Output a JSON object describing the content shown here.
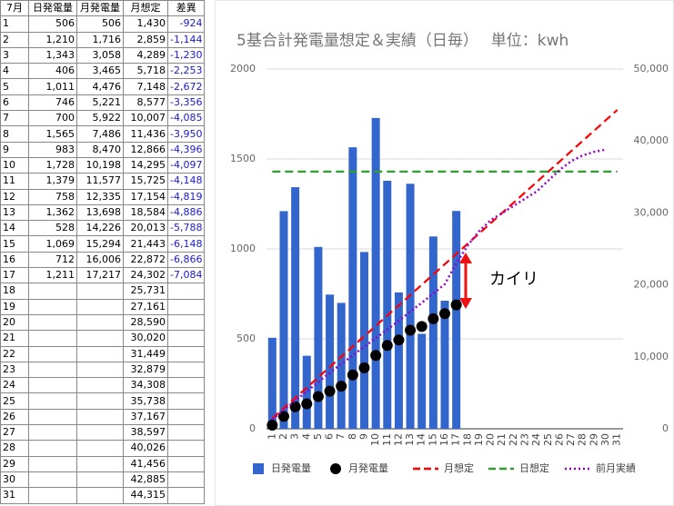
{
  "table": {
    "columns": [
      "7月",
      "日発電量",
      "月発電量",
      "月想定",
      "差異"
    ],
    "rows": [
      {
        "day": "1",
        "daily": "506",
        "monthly": "506",
        "plan": "1,430",
        "diff": "-924"
      },
      {
        "day": "2",
        "daily": "1,210",
        "monthly": "1,716",
        "plan": "2,859",
        "diff": "-1,144"
      },
      {
        "day": "3",
        "daily": "1,343",
        "monthly": "3,058",
        "plan": "4,289",
        "diff": "-1,230"
      },
      {
        "day": "4",
        "daily": "406",
        "monthly": "3,465",
        "plan": "5,718",
        "diff": "-2,253"
      },
      {
        "day": "5",
        "daily": "1,011",
        "monthly": "4,476",
        "plan": "7,148",
        "diff": "-2,672"
      },
      {
        "day": "6",
        "daily": "746",
        "monthly": "5,221",
        "plan": "8,577",
        "diff": "-3,356"
      },
      {
        "day": "7",
        "daily": "700",
        "monthly": "5,922",
        "plan": "10,007",
        "diff": "-4,085"
      },
      {
        "day": "8",
        "daily": "1,565",
        "monthly": "7,486",
        "plan": "11,436",
        "diff": "-3,950"
      },
      {
        "day": "9",
        "daily": "983",
        "monthly": "8,470",
        "plan": "12,866",
        "diff": "-4,396"
      },
      {
        "day": "10",
        "daily": "1,728",
        "monthly": "10,198",
        "plan": "14,295",
        "diff": "-4,097"
      },
      {
        "day": "11",
        "daily": "1,379",
        "monthly": "11,577",
        "plan": "15,725",
        "diff": "-4,148"
      },
      {
        "day": "12",
        "daily": "758",
        "monthly": "12,335",
        "plan": "17,154",
        "diff": "-4,819"
      },
      {
        "day": "13",
        "daily": "1,362",
        "monthly": "13,698",
        "plan": "18,584",
        "diff": "-4,886"
      },
      {
        "day": "14",
        "daily": "528",
        "monthly": "14,226",
        "plan": "20,013",
        "diff": "-5,788"
      },
      {
        "day": "15",
        "daily": "1,069",
        "monthly": "15,294",
        "plan": "21,443",
        "diff": "-6,148"
      },
      {
        "day": "16",
        "daily": "712",
        "monthly": "16,006",
        "plan": "22,872",
        "diff": "-6,866"
      },
      {
        "day": "17",
        "daily": "1,211",
        "monthly": "17,217",
        "plan": "24,302",
        "diff": "-7,084"
      },
      {
        "day": "18",
        "plan": "25,731"
      },
      {
        "day": "19",
        "plan": "27,161"
      },
      {
        "day": "20",
        "plan": "28,590"
      },
      {
        "day": "21",
        "plan": "30,020"
      },
      {
        "day": "22",
        "plan": "31,449"
      },
      {
        "day": "23",
        "plan": "32,879"
      },
      {
        "day": "24",
        "plan": "34,308"
      },
      {
        "day": "25",
        "plan": "35,738"
      },
      {
        "day": "26",
        "plan": "37,167"
      },
      {
        "day": "27",
        "plan": "38,597"
      },
      {
        "day": "28",
        "plan": "40,026"
      },
      {
        "day": "29",
        "plan": "41,456"
      },
      {
        "day": "30",
        "plan": "42,885"
      },
      {
        "day": "31",
        "plan": "44,315"
      }
    ]
  },
  "chart_data": {
    "type": "combo",
    "title": "5基合計発電量想定＆実績（日毎）　 単位：kwh",
    "annotation": "カイリ",
    "categories": [
      "1",
      "2",
      "3",
      "4",
      "5",
      "6",
      "7",
      "8",
      "9",
      "10",
      "11",
      "12",
      "13",
      "14",
      "15",
      "16",
      "17",
      "18",
      "19",
      "20",
      "21",
      "22",
      "23",
      "24",
      "25",
      "26",
      "27",
      "28",
      "29",
      "30",
      "31"
    ],
    "ylim": [
      0,
      2000
    ],
    "yticks": [
      0,
      500,
      1000,
      1500,
      2000
    ],
    "y2lim": [
      0,
      50000
    ],
    "y2ticks": [
      0,
      {
        "value": 10000,
        "label": "10,000"
      },
      {
        "value": 20000,
        "label": "20,000"
      },
      {
        "value": 30000,
        "label": "30,000"
      },
      {
        "value": 40000,
        "label": "40,000"
      },
      {
        "value": 50000,
        "label": "50,000"
      }
    ],
    "grid": true,
    "legend": "bottom",
    "series": [
      {
        "name": "日発電量",
        "color": "#3366cc",
        "mark": "bar",
        "values": [
          506,
          1210,
          1343,
          406,
          1011,
          746,
          700,
          1565,
          983,
          1728,
          1379,
          758,
          1362,
          528,
          1069,
          712,
          1211,
          null,
          null,
          null,
          null,
          null,
          null,
          null,
          null,
          null,
          null,
          null,
          null,
          null,
          null
        ]
      },
      {
        "name": "月発電量",
        "color": "#000000",
        "mark": "point",
        "axis": "y2",
        "values": [
          506,
          1716,
          3058,
          3465,
          4476,
          5221,
          5922,
          7486,
          8470,
          10198,
          11577,
          12335,
          13698,
          14226,
          15294,
          16006,
          17217,
          null,
          null,
          null,
          null,
          null,
          null,
          null,
          null,
          null,
          null,
          null,
          null,
          null,
          null
        ]
      },
      {
        "name": "月想定",
        "color": "#ff0000",
        "mark": "dash",
        "axis": "y2",
        "values": [
          1430,
          2859,
          4289,
          5718,
          7148,
          8577,
          10007,
          11436,
          12866,
          14295,
          15725,
          17154,
          18584,
          20013,
          21443,
          22872,
          24302,
          25731,
          27161,
          28590,
          30020,
          31449,
          32879,
          34308,
          35738,
          37167,
          38597,
          40026,
          41456,
          42885,
          44315
        ]
      },
      {
        "name": "日想定",
        "color": "#2e9e2e",
        "mark": "dash",
        "values": [
          1430,
          1430,
          1430,
          1430,
          1430,
          1430,
          1430,
          1430,
          1430,
          1430,
          1430,
          1430,
          1430,
          1430,
          1430,
          1430,
          1430,
          1430,
          1430,
          1430,
          1430,
          1430,
          1430,
          1430,
          1430,
          1430,
          1430,
          1430,
          1430,
          1430,
          1430
        ]
      },
      {
        "name": "前月実績",
        "color": "#9900cc",
        "mark": "dot",
        "axis": "y2",
        "values": [
          1300,
          2600,
          3900,
          5200,
          6500,
          7800,
          9000,
          10200,
          11400,
          12600,
          13800,
          15000,
          16300,
          17500,
          18800,
          20100,
          23000,
          25500,
          27500,
          29000,
          30000,
          31000,
          32000,
          33000,
          34500,
          36000,
          37200,
          38000,
          38500,
          38800,
          null
        ]
      }
    ]
  }
}
